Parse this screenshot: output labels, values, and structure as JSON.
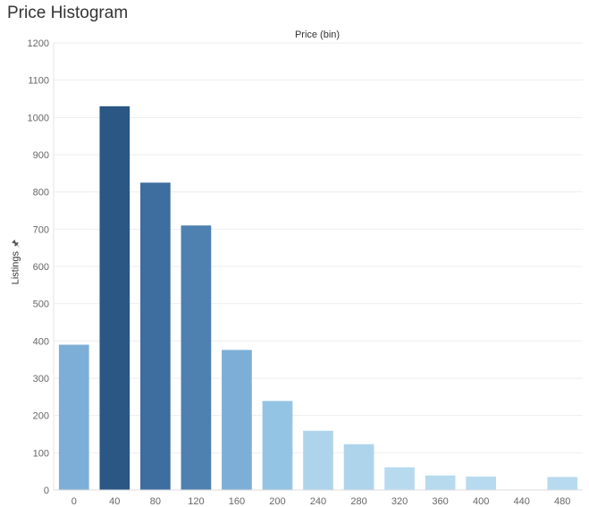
{
  "title": "Price Histogram",
  "chart_data": {
    "type": "bar",
    "title": "Price Histogram",
    "xlabel": "Price (bin)",
    "ylabel": "Listings",
    "ylim": [
      0,
      1200
    ],
    "yticks": [
      0,
      100,
      200,
      300,
      400,
      500,
      600,
      700,
      800,
      900,
      1000,
      1100,
      1200
    ],
    "grid": true,
    "categories": [
      "0",
      "40",
      "80",
      "120",
      "160",
      "200",
      "240",
      "280",
      "320",
      "360",
      "400",
      "440",
      "480"
    ],
    "values": [
      390,
      1030,
      825,
      710,
      376,
      239,
      159,
      123,
      61,
      39,
      36,
      0,
      35
    ],
    "colors": [
      "#7DAFD6",
      "#2A5784",
      "#3E6E9F",
      "#4E80B0",
      "#7DAFD6",
      "#94C4E3",
      "#AED4EC",
      "#AED4EC",
      "#B7DAEF",
      "#B7DAEF",
      "#B7DAEF",
      "#B7DAEF",
      "#B7DAEF"
    ]
  },
  "icons": {
    "pin": "pin-icon"
  },
  "colors": {
    "grid": "#eeeeee",
    "axis_text": "#666666",
    "title_text": "#333333"
  }
}
